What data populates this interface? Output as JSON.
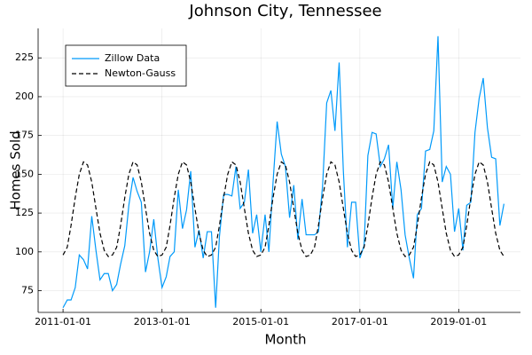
{
  "chart_data": {
    "type": "line",
    "title": "Johnson City, Tennessee",
    "xlabel": "Month",
    "ylabel": "Homes Sold",
    "x": [
      "2011-01-01",
      "2011-02-01",
      "2011-03-01",
      "2011-04-01",
      "2011-05-01",
      "2011-06-01",
      "2011-07-01",
      "2011-08-01",
      "2011-09-01",
      "2011-10-01",
      "2011-11-01",
      "2011-12-01",
      "2012-01-01",
      "2012-02-01",
      "2012-03-01",
      "2012-04-01",
      "2012-05-01",
      "2012-06-01",
      "2012-07-01",
      "2012-08-01",
      "2012-09-01",
      "2012-10-01",
      "2012-11-01",
      "2012-12-01",
      "2013-01-01",
      "2013-02-01",
      "2013-03-01",
      "2013-04-01",
      "2013-05-01",
      "2013-06-01",
      "2013-07-01",
      "2013-08-01",
      "2013-09-01",
      "2013-10-01",
      "2013-11-01",
      "2013-12-01",
      "2014-01-01",
      "2014-02-01",
      "2014-03-01",
      "2014-04-01",
      "2014-05-01",
      "2014-06-01",
      "2014-07-01",
      "2014-08-01",
      "2014-09-01",
      "2014-10-01",
      "2014-11-01",
      "2014-12-01",
      "2015-01-01",
      "2015-02-01",
      "2015-03-01",
      "2015-04-01",
      "2015-05-01",
      "2015-06-01",
      "2015-07-01",
      "2015-08-01",
      "2015-09-01",
      "2015-10-01",
      "2015-11-01",
      "2015-12-01",
      "2016-01-01",
      "2016-02-01",
      "2016-03-01",
      "2016-04-01",
      "2016-05-01",
      "2016-06-01",
      "2016-07-01",
      "2016-08-01",
      "2016-09-01",
      "2016-10-01",
      "2016-11-01",
      "2016-12-01",
      "2017-01-01",
      "2017-02-01",
      "2017-03-01",
      "2017-04-01",
      "2017-05-01",
      "2017-06-01",
      "2017-07-01",
      "2017-08-01",
      "2017-09-01",
      "2017-10-01",
      "2017-11-01",
      "2017-12-01",
      "2018-01-01",
      "2018-02-01",
      "2018-03-01",
      "2018-04-01",
      "2018-05-01",
      "2018-06-01",
      "2018-07-01",
      "2018-08-01",
      "2018-09-01",
      "2018-10-01",
      "2018-11-01",
      "2018-12-01",
      "2019-01-01",
      "2019-02-01",
      "2019-03-01",
      "2019-04-01",
      "2019-05-01",
      "2019-06-01",
      "2019-07-01",
      "2019-08-01",
      "2019-09-01",
      "2019-10-01",
      "2019-11-01",
      "2019-12-01"
    ],
    "series": [
      {
        "name": "Zillow Data",
        "color": "#009afa",
        "dash": false,
        "values": [
          64,
          69,
          69,
          77,
          98,
          95,
          89,
          123,
          101,
          82,
          86,
          86,
          75,
          79,
          92,
          104,
          130,
          148,
          139,
          132,
          87,
          100,
          121,
          96,
          77,
          84,
          97,
          100,
          140,
          115,
          127,
          152,
          103,
          114,
          96,
          113,
          113,
          64,
          110,
          137,
          137,
          136,
          155,
          128,
          132,
          153,
          112,
          124,
          100,
          124,
          100,
          145,
          184,
          163,
          155,
          122,
          143,
          108,
          134,
          111,
          111,
          111,
          113,
          143,
          196,
          204,
          178,
          222,
          152,
          103,
          132,
          132,
          96,
          104,
          162,
          177,
          176,
          155,
          160,
          169,
          128,
          158,
          140,
          111,
          96,
          83,
          124,
          128,
          165,
          166,
          178,
          239,
          145,
          155,
          150,
          113,
          128,
          101,
          130,
          132,
          177,
          199,
          212,
          180,
          161,
          160,
          117,
          131
        ]
      },
      {
        "name": "Newton-Gauss",
        "color": "#000000",
        "dash": true,
        "values": [
          98,
          103,
          117,
          135,
          150,
          158,
          156,
          145,
          128,
          112,
          101,
          97,
          98,
          103,
          117,
          135,
          150,
          158,
          156,
          145,
          128,
          112,
          101,
          97,
          98,
          103,
          117,
          135,
          150,
          158,
          156,
          145,
          128,
          112,
          101,
          97,
          98,
          103,
          117,
          135,
          150,
          158,
          156,
          145,
          128,
          112,
          101,
          97,
          98,
          103,
          117,
          135,
          150,
          158,
          156,
          145,
          128,
          112,
          101,
          97,
          98,
          103,
          117,
          135,
          150,
          158,
          156,
          145,
          128,
          112,
          101,
          97,
          98,
          103,
          117,
          135,
          150,
          158,
          156,
          145,
          128,
          112,
          101,
          97,
          98,
          103,
          117,
          135,
          150,
          158,
          156,
          145,
          128,
          112,
          101,
          97,
          98,
          103,
          117,
          135,
          150,
          158,
          156,
          145,
          128,
          112,
          101,
          97
        ]
      }
    ],
    "xlim": [
      "2010-07-01",
      "2020-04-01"
    ],
    "xticks": [
      "2011-01-01",
      "2013-01-01",
      "2015-01-01",
      "2017-01-01",
      "2019-01-01"
    ],
    "ylim": [
      61,
      244
    ],
    "yticks": [
      75,
      100,
      125,
      150,
      175,
      200,
      225
    ],
    "grid": true,
    "legend": "top-left"
  }
}
